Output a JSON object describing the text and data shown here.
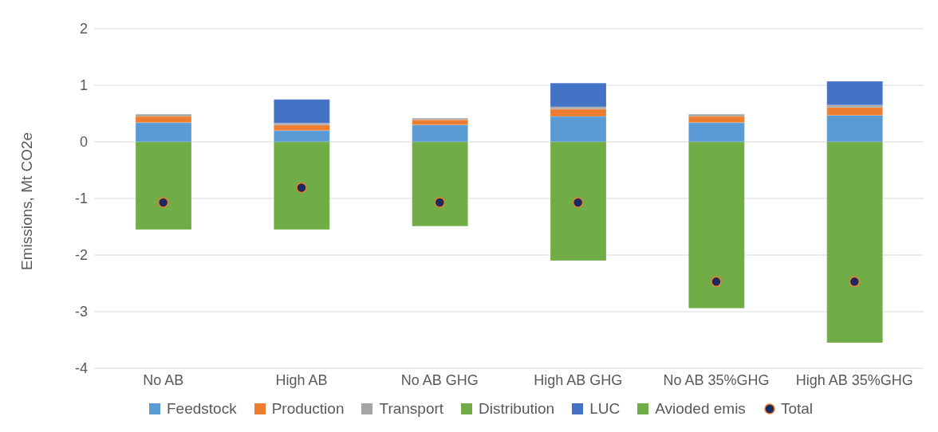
{
  "chart_data": {
    "type": "bar",
    "stacked": true,
    "ylabel": "Emissions, Mt CO2e",
    "categories": [
      "No AB",
      "High AB",
      "No AB GHG",
      "High AB GHG",
      "No AB 35%GHG",
      "High AB 35%GHG"
    ],
    "series": [
      {
        "name": "Feedstock",
        "color": "#5b9bd5",
        "values": [
          0.34,
          0.2,
          0.3,
          0.45,
          0.34,
          0.47
        ]
      },
      {
        "name": "Production",
        "color": "#ed7d31",
        "values": [
          0.11,
          0.1,
          0.09,
          0.13,
          0.11,
          0.14
        ]
      },
      {
        "name": "Transport",
        "color": "#a5a5a5",
        "values": [
          0.04,
          0.03,
          0.03,
          0.04,
          0.04,
          0.04
        ]
      },
      {
        "name": "Distribution",
        "color": "#70ad47",
        "values": [
          0,
          0,
          0,
          0,
          0,
          0
        ]
      },
      {
        "name": "LUC",
        "color": "#4472c4",
        "values": [
          0,
          0.42,
          0,
          0.42,
          0,
          0.42
        ]
      },
      {
        "name": "Avioded emis",
        "color": "#70ad47",
        "values": [
          -1.55,
          -1.55,
          -1.49,
          -2.1,
          -2.94,
          -3.55
        ]
      },
      {
        "name": "Total",
        "type": "scatter",
        "marker": "circle",
        "color": "#1b2a5c",
        "x": [
          "No AB",
          "High AB",
          "No AB GHG",
          "High AB GHG",
          "No AB 35%GHG",
          "High AB 35%GHG"
        ],
        "values": [
          -1.07,
          -0.81,
          -1.07,
          -1.07,
          -2.47,
          -2.47
        ]
      }
    ],
    "ylim": [
      -4,
      2
    ],
    "yticks": [
      -4,
      -3,
      -2,
      -1,
      0,
      1,
      2
    ],
    "grid": "y",
    "legend": "bottom"
  }
}
